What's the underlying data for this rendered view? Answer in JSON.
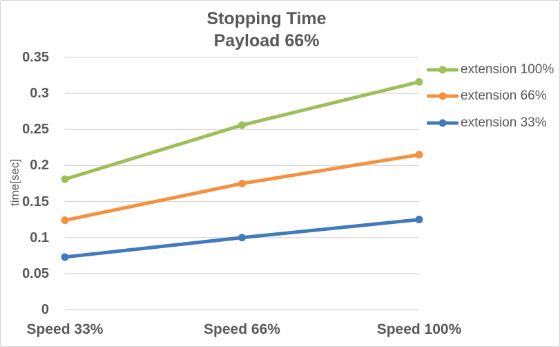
{
  "chart_data": {
    "type": "line",
    "title": "Stopping Time",
    "subtitle": "Payload 66%",
    "xlabel": "",
    "ylabel": "time[sec]",
    "categories": [
      "Speed 33%",
      "Speed 66%",
      "Speed 100%"
    ],
    "series": [
      {
        "name": "extension 100%",
        "color": "#9DBE59",
        "values": [
          0.181,
          0.256,
          0.316
        ]
      },
      {
        "name": "extension 66%",
        "color": "#F5913E",
        "values": [
          0.124,
          0.175,
          0.215
        ]
      },
      {
        "name": "extension 33%",
        "color": "#4379BD",
        "values": [
          0.073,
          0.1,
          0.125
        ]
      }
    ],
    "ylim": [
      0,
      0.35
    ],
    "ytick_step": 0.05,
    "ytick_labels": [
      "0",
      "0.05",
      "0.1",
      "0.15",
      "0.2",
      "0.25",
      "0.3",
      "0.35"
    ],
    "grid": true,
    "legend_position": "right",
    "marker": "circle",
    "line_width": 5,
    "colors": {
      "text": "#595959",
      "grid": "#D9D9D9",
      "background": "#FFFFFF",
      "border": "#D4D4D4"
    }
  }
}
